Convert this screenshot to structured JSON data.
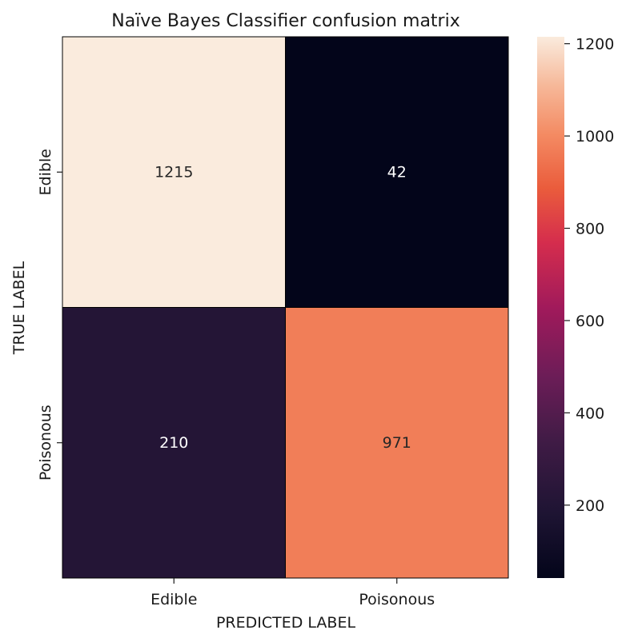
{
  "chart_data": {
    "type": "heatmap",
    "title": "Naïve Bayes Classifier confusion matrix",
    "xlabel": "PREDICTED LABEL",
    "ylabel": "TRUE LABEL",
    "x_categories": [
      "Edible",
      "Poisonous"
    ],
    "y_categories": [
      "Edible",
      "Poisonous"
    ],
    "values": [
      [
        1215,
        42
      ],
      [
        210,
        971
      ]
    ],
    "cell_labels": [
      [
        "1215",
        "42"
      ],
      [
        "210",
        "971"
      ]
    ],
    "colorbar": {
      "range": [
        42,
        1215
      ],
      "ticks": [
        200,
        400,
        600,
        800,
        1000,
        1200
      ],
      "tick_labels": [
        "200",
        "400",
        "600",
        "800",
        "1000",
        "1200"
      ],
      "colormap": "rocket",
      "colors": {
        "low": "#03051a",
        "high": "#faebdd"
      }
    },
    "grid": false,
    "legend": "colorbar-right"
  }
}
